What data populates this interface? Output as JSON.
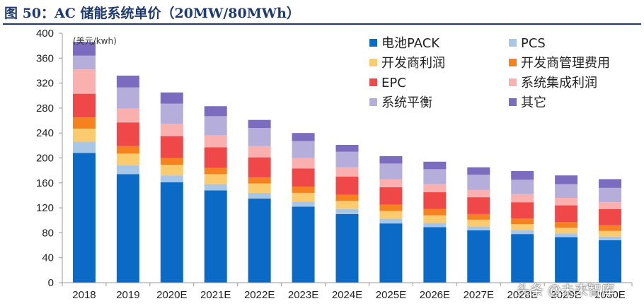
{
  "figure": {
    "title": "图 50：AC 储能系统单价（20MW/80MWh）",
    "watermark": "头条 @未来智库"
  },
  "chart_data": {
    "type": "bar",
    "stacked": true,
    "unit_label": "(美元/kwh)",
    "xlabel": "",
    "ylabel": "",
    "ylim": [
      0,
      400
    ],
    "yticks": [
      0,
      40,
      80,
      120,
      160,
      200,
      240,
      280,
      320,
      360,
      400
    ],
    "grid": false,
    "legend_position": "top-right",
    "categories": [
      "2018",
      "2019",
      "2020E",
      "2021E",
      "2022E",
      "2023E",
      "2024E",
      "2025E",
      "2026E",
      "2027E",
      "2028E",
      "2029E",
      "2030E"
    ],
    "series": [
      {
        "name": "电池PACK",
        "color": "#0b6ac6",
        "values": [
          208,
          174,
          161,
          148,
          135,
          122,
          110,
          95,
          89,
          84,
          78,
          73,
          68
        ]
      },
      {
        "name": "PCS",
        "color": "#a8c6e6",
        "values": [
          18,
          14,
          11,
          10,
          9,
          8,
          8,
          7,
          7,
          6,
          6,
          6,
          6
        ]
      },
      {
        "name": "开发商利润",
        "color": "#fccb6e",
        "values": [
          21,
          19,
          17,
          16,
          15,
          14,
          13,
          13,
          12,
          11,
          10,
          9,
          9
        ]
      },
      {
        "name": "开发商管理费用",
        "color": "#f6811f",
        "values": [
          18,
          12,
          11,
          10,
          10,
          10,
          10,
          10,
          10,
          9,
          9,
          9,
          9
        ]
      },
      {
        "name": "EPC",
        "color": "#f04848",
        "values": [
          38,
          38,
          35,
          33,
          32,
          29,
          29,
          28,
          27,
          27,
          26,
          27,
          26
        ]
      },
      {
        "name": "系统集成利润",
        "color": "#fbb0b0",
        "values": [
          39,
          22,
          20,
          19,
          18,
          17,
          15,
          13,
          13,
          12,
          13,
          12,
          11
        ]
      },
      {
        "name": "系统平衡",
        "color": "#b5aedb",
        "values": [
          22,
          34,
          32,
          31,
          29,
          27,
          25,
          25,
          24,
          24,
          23,
          22,
          23
        ]
      },
      {
        "name": "其它",
        "color": "#7b6cbf",
        "values": [
          22,
          19,
          18,
          16,
          13,
          13,
          11,
          12,
          12,
          12,
          14,
          14,
          14
        ]
      }
    ]
  }
}
